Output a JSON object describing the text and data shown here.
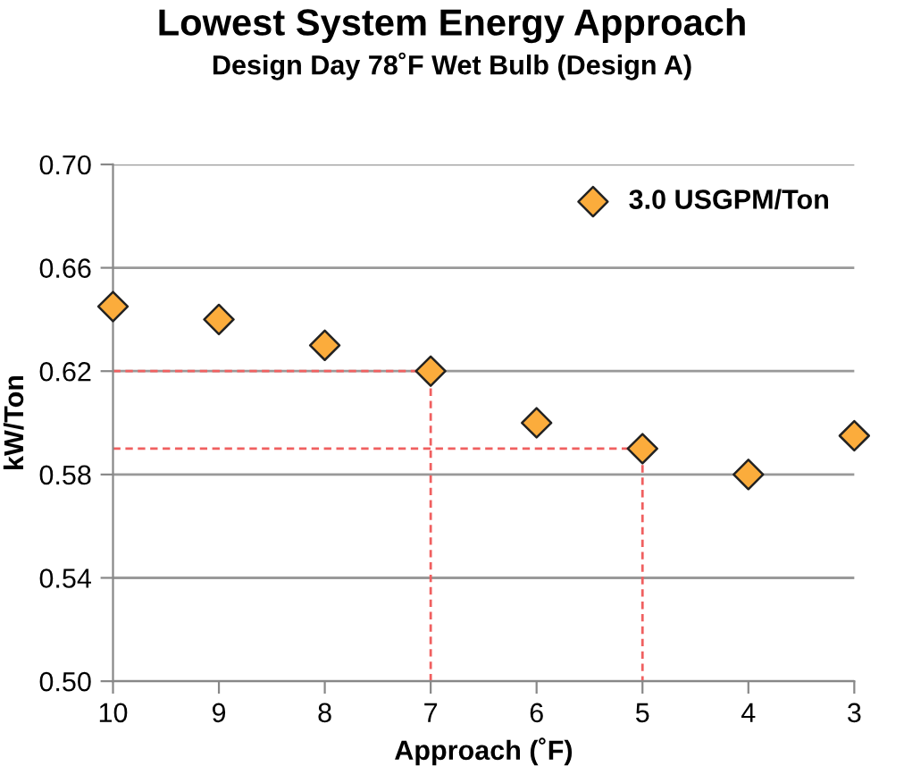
{
  "chart_data": {
    "type": "scatter",
    "title": "Lowest System Energy Approach",
    "subtitle": "Design Day 78˚F Wet Bulb (Design A)",
    "xlabel": "Approach (˚F)",
    "ylabel": "kW/Ton",
    "xlim": [
      10,
      3
    ],
    "xticks": [
      10,
      9,
      8,
      7,
      6,
      5,
      4,
      3
    ],
    "ylim": [
      0.5,
      0.7
    ],
    "yticks": [
      {
        "value": 0.5,
        "label": "0.50"
      },
      {
        "value": 0.54,
        "label": "0.54"
      },
      {
        "value": 0.58,
        "label": "0.58"
      },
      {
        "value": 0.62,
        "label": "0.62"
      },
      {
        "value": 0.66,
        "label": "0.66"
      },
      {
        "value": 0.7,
        "label": "0.70"
      }
    ],
    "grid": "y",
    "legend": "top right",
    "marker": "diamond",
    "series": [
      {
        "type": "line",
        "color": "#f06060",
        "line_style": "dashed",
        "marker": "none",
        "x": [
          10,
          7,
          7
        ],
        "values": [
          0.62,
          0.62,
          0.5
        ]
      },
      {
        "type": "line",
        "color": "#f06060",
        "line_style": "dashed",
        "marker": "none",
        "x": [
          10,
          5,
          5
        ],
        "values": [
          0.59,
          0.59,
          0.5
        ]
      },
      {
        "name": "3.0 USGPM/Ton",
        "color": "#fbac3c",
        "x": [
          10,
          9,
          8,
          7,
          6,
          5,
          4,
          3
        ],
        "values": [
          0.645,
          0.64,
          0.63,
          0.62,
          0.6,
          0.59,
          0.58,
          0.595
        ]
      }
    ]
  }
}
